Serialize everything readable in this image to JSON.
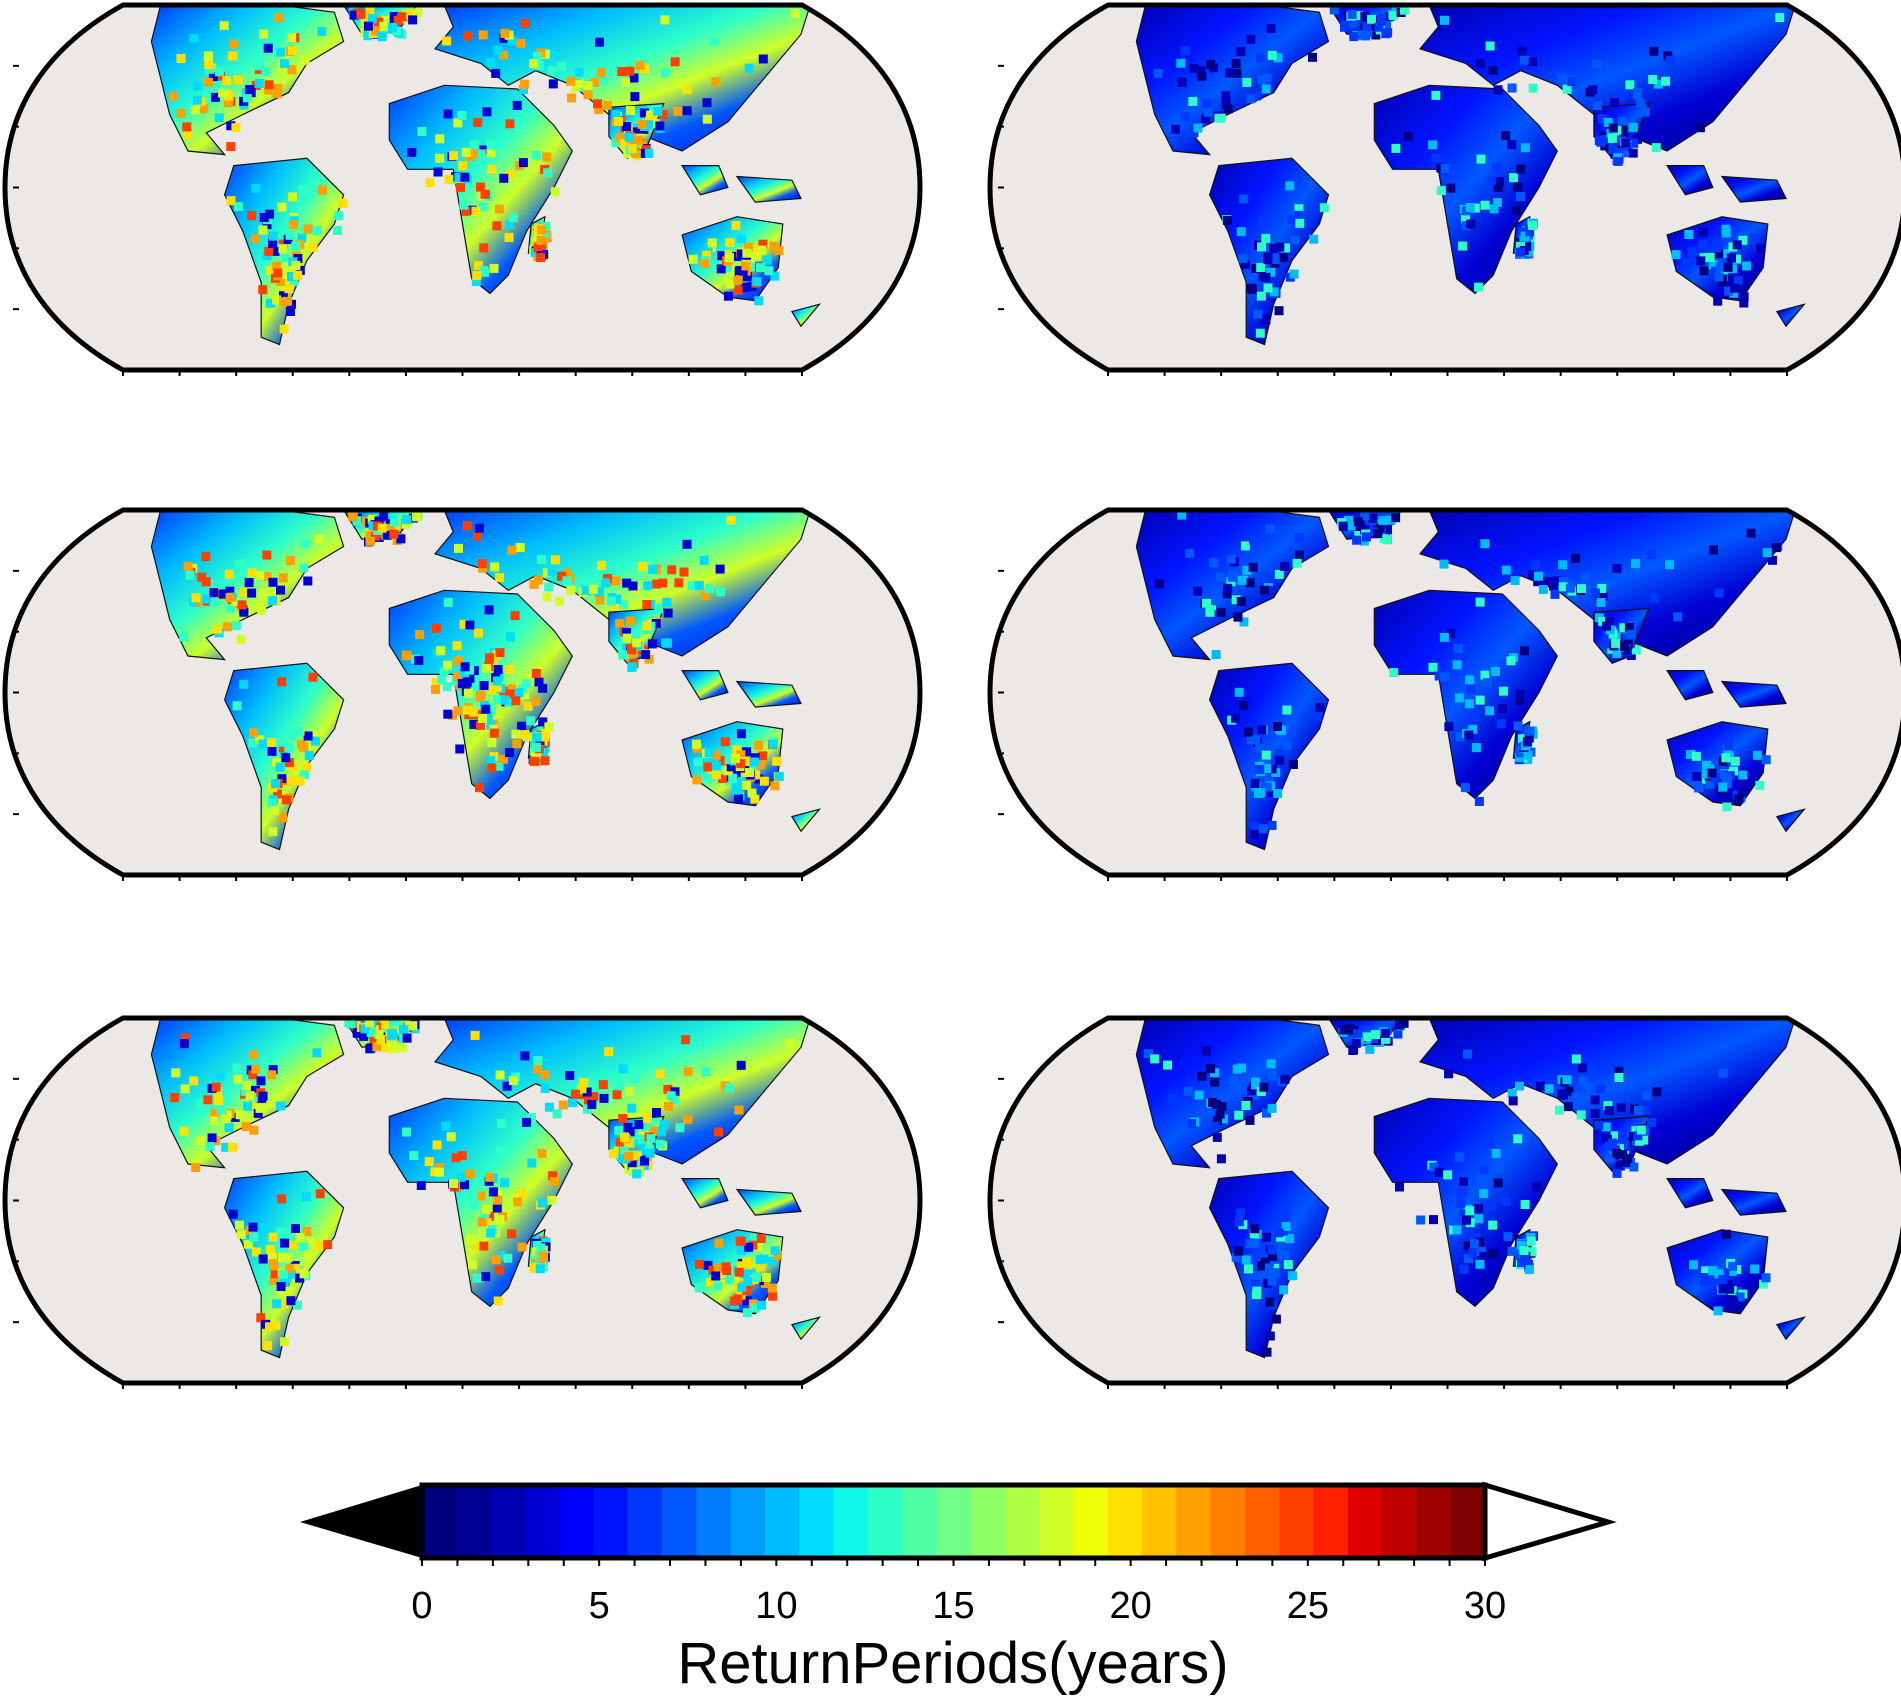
{
  "figure": {
    "panel_count": 6,
    "layout": "3 rows x 2 columns",
    "projection": "Robinson-like world map",
    "ocean_color": "#ece8e6",
    "frame_color": "#000000"
  },
  "panels": [
    {
      "id": "row1-left",
      "intensity": "high"
    },
    {
      "id": "row1-right",
      "intensity": "low"
    },
    {
      "id": "row2-left",
      "intensity": "high"
    },
    {
      "id": "row2-right",
      "intensity": "low"
    },
    {
      "id": "row3-left",
      "intensity": "high"
    },
    {
      "id": "row3-right",
      "intensity": "low"
    }
  ],
  "colorbar": {
    "title": "ReturnPeriods(years)",
    "min": 0,
    "max": 30,
    "step": 1,
    "tick_values": [
      0,
      5,
      10,
      15,
      20,
      25,
      30
    ],
    "tick_labels": [
      "0",
      "5",
      "10",
      "15",
      "20",
      "25",
      "30"
    ],
    "under_color": "#000000",
    "over_color": "#ffffff",
    "colors": [
      "#00007f",
      "#000095",
      "#0000b2",
      "#0000d4",
      "#0000ff",
      "#0014ff",
      "#0038ff",
      "#0058ff",
      "#007cff",
      "#009cff",
      "#00bcff",
      "#00dcff",
      "#0ff8e7",
      "#2fffc7",
      "#4fffa7",
      "#6fff87",
      "#8fff67",
      "#afff47",
      "#cfff27",
      "#efff07",
      "#ffe000",
      "#ffc000",
      "#ffa000",
      "#ff8000",
      "#ff6000",
      "#ff4000",
      "#ff2000",
      "#df0000",
      "#bf0000",
      "#9f0000",
      "#7f0000"
    ]
  }
}
